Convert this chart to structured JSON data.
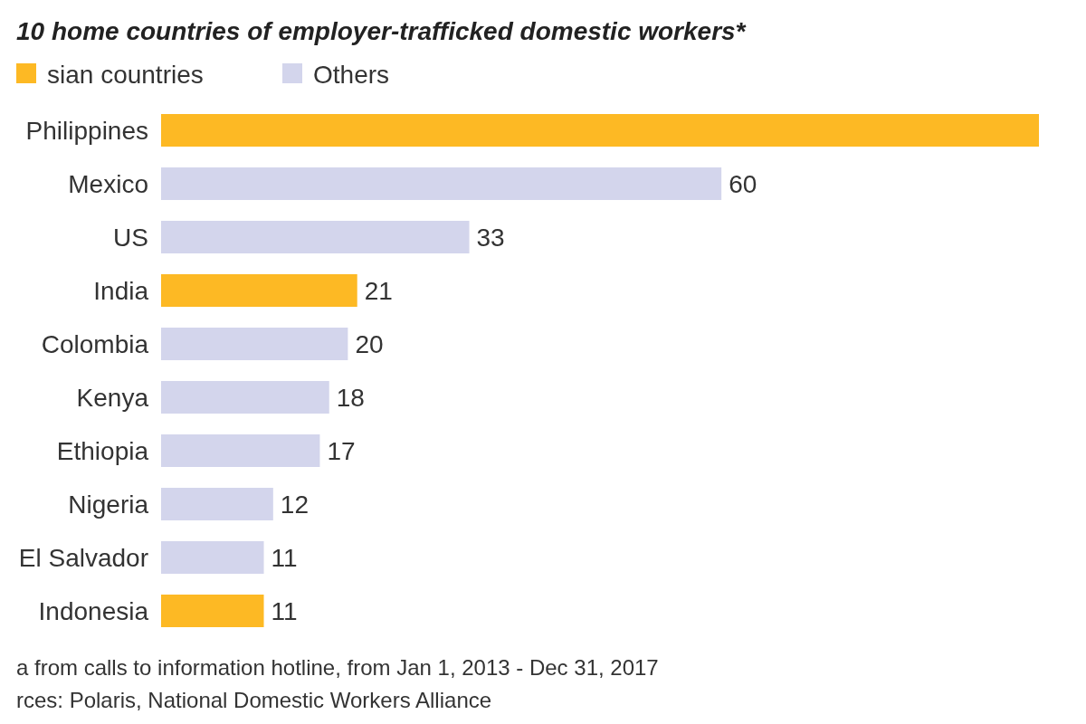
{
  "chart_data": {
    "type": "bar",
    "orientation": "horizontal",
    "title": "10 home countries of employer-trafficked domestic workers*",
    "categories": [
      "Philippines",
      "Mexico",
      "US",
      "India",
      "Colombia",
      "Kenya",
      "Ethiopia",
      "Nigeria",
      "El Salvador",
      "Indonesia"
    ],
    "series": [
      {
        "name": "sian countries",
        "color": "#fdb924",
        "values": [
          94,
          null,
          null,
          21,
          null,
          null,
          null,
          null,
          null,
          11
        ],
        "value_labels": [
          null,
          null,
          null,
          "21",
          null,
          null,
          null,
          null,
          null,
          "11"
        ]
      },
      {
        "name": "Others",
        "color": "#d3d5ec",
        "values": [
          null,
          60,
          33,
          null,
          20,
          18,
          17,
          12,
          11,
          null
        ],
        "value_labels": [
          null,
          "60",
          "33",
          null,
          "20",
          "18",
          "17",
          "12",
          "11",
          null
        ]
      }
    ],
    "legend": "top left",
    "annotations": [
      "a from calls to information hotline, from  Jan 1, 2013 - Dec 31, 2017",
      "rces: Polaris, National Domestic Workers Alliance"
    ]
  }
}
